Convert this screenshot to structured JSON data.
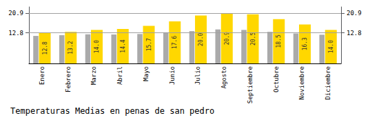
{
  "chart_data": {
    "type": "bar",
    "title": "Temperaturas Medias en penas de san pedro",
    "categories": [
      "Enero",
      "Febrero",
      "Marzo",
      "Abril",
      "Mayo",
      "Junio",
      "Julio",
      "Agosto",
      "Septiembre",
      "Octubre",
      "Noviembre",
      "Diciembre"
    ],
    "series": [
      {
        "color": "#AAAAAA",
        "values": [
          11.5,
          11.8,
          12.2,
          12.1,
          12.3,
          13.0,
          13.5,
          14.2,
          14.0,
          13.2,
          12.5,
          12.0
        ]
      },
      {
        "color": "#FFD700",
        "values": [
          12.8,
          13.2,
          14.0,
          14.4,
          15.7,
          17.6,
          20.0,
          20.9,
          20.5,
          18.5,
          16.3,
          14.0
        ],
        "value_labels": [
          "12.8",
          "13.2",
          "14.0",
          "14.4",
          "15.7",
          "17.6",
          "20.0",
          "20.9",
          "20.5",
          "18.5",
          "16.3",
          "14.0"
        ],
        "data_labels": true
      }
    ],
    "ylim": [
      0,
      23.617
    ],
    "yticks": [
      12.8,
      20.9
    ],
    "y2lim": [
      0,
      23.617
    ],
    "y2ticks": [
      12.8,
      20.9
    ],
    "grid": true
  }
}
